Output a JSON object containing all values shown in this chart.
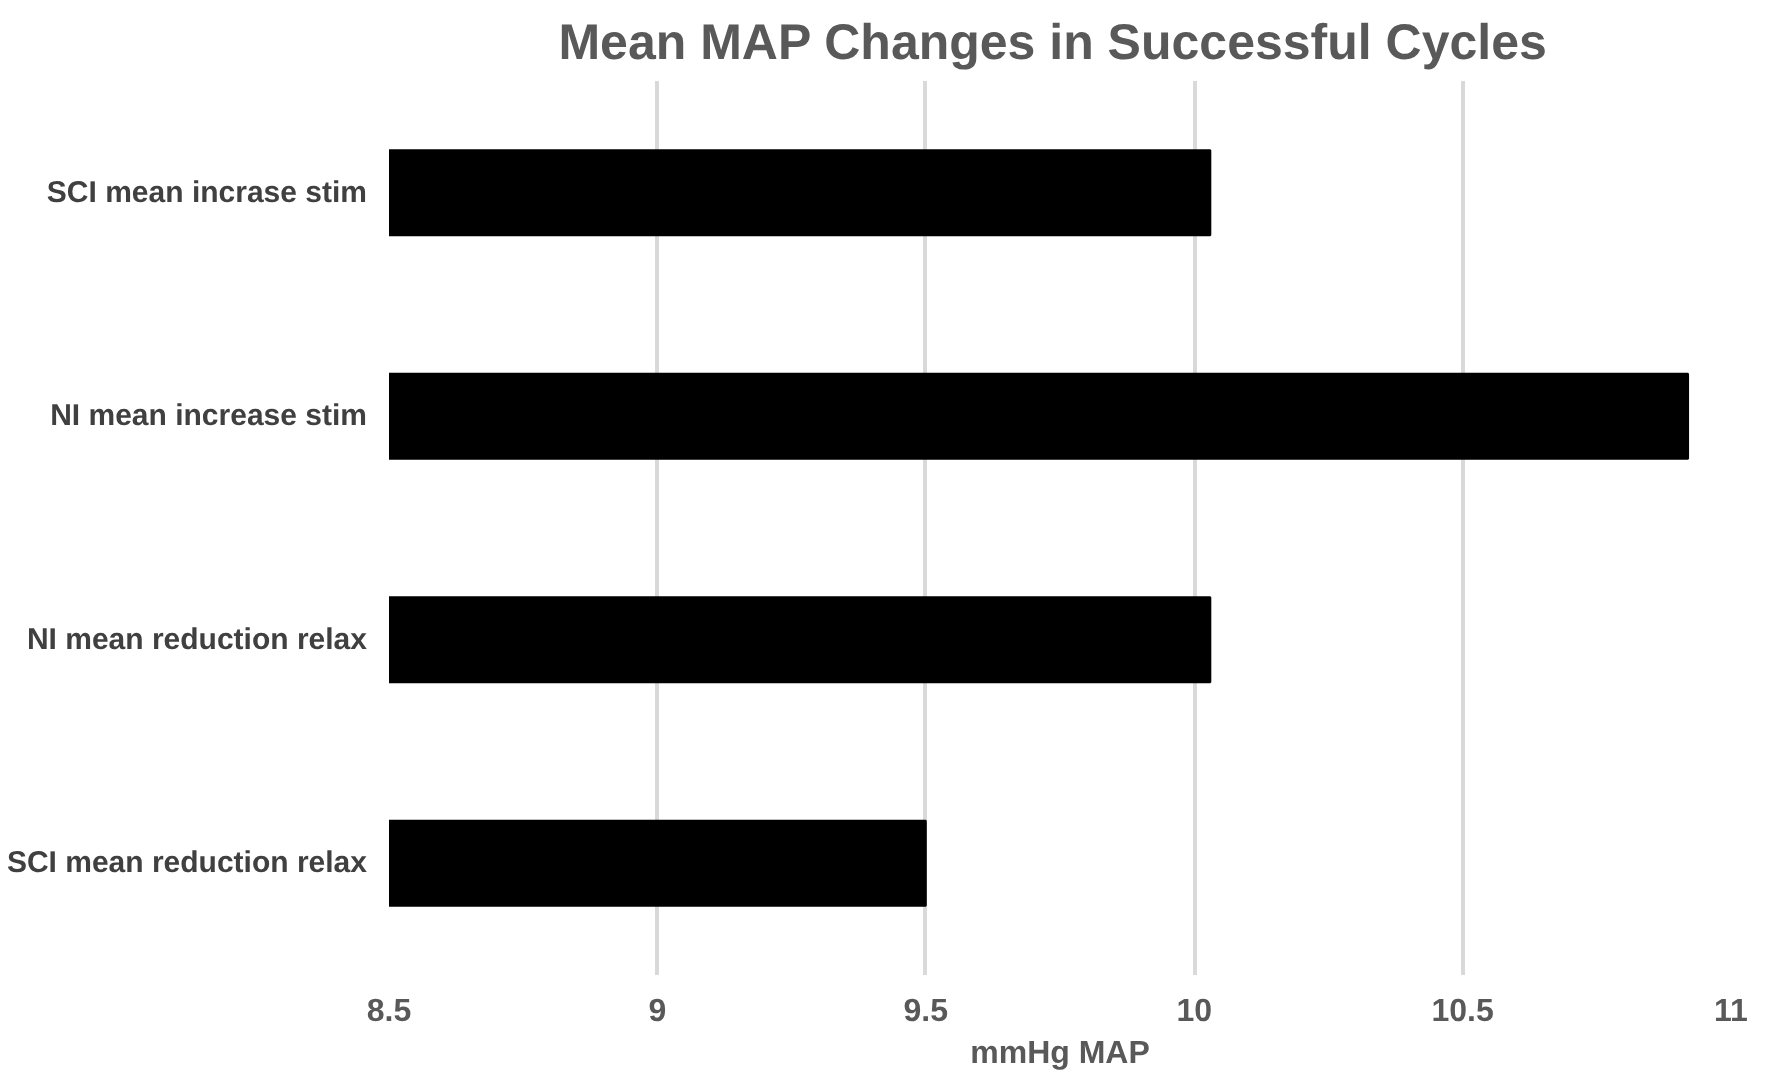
{
  "chart_data": {
    "type": "bar",
    "orientation": "horizontal",
    "title": "Mean  MAP Changes in Successful Cycles",
    "xlabel": "mmHg MAP",
    "categories": [
      "SCI mean incrase stim",
      "NI mean increase stim",
      "NI mean reduction relax",
      "SCI mean reduction relax"
    ],
    "values": [
      10.03,
      10.92,
      10.03,
      9.5
    ],
    "color": "#000000",
    "xlim": [
      8.5,
      11
    ],
    "xticks": [
      8.5,
      9,
      9.5,
      10,
      10.5,
      11
    ],
    "grid": "x"
  }
}
